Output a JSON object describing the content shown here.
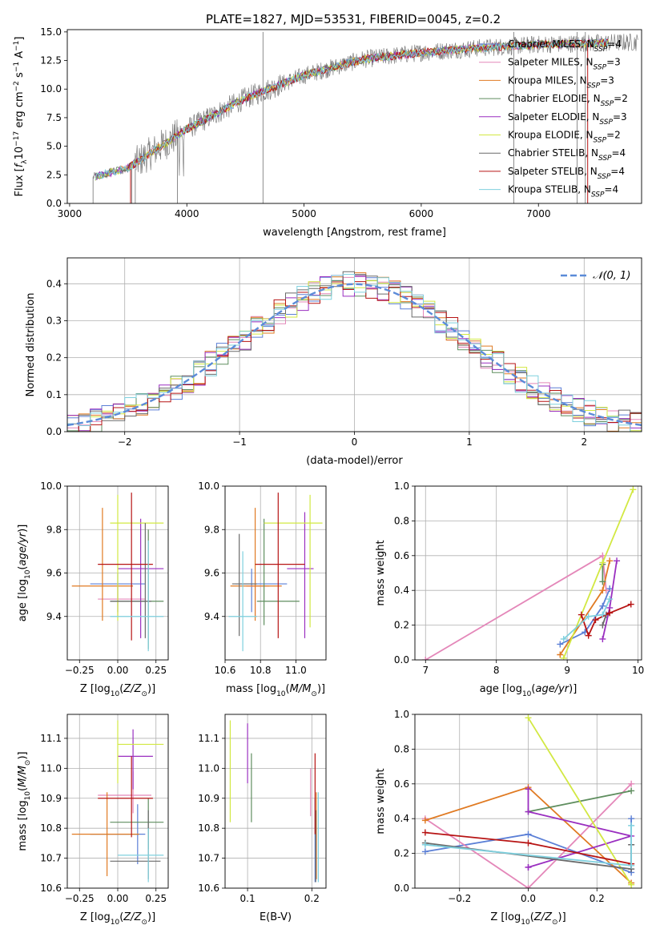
{
  "title": "PLATE=1827, MJD=53531, FIBERID=0045, z=0.2",
  "colors": {
    "Chabrier MILES": "#5b7fd6",
    "Salpeter MILES": "#e487b9",
    "Kroupa MILES": "#e07a22",
    "Chabrier ELODIE": "#5f8e5f",
    "Salpeter ELODIE": "#9a2fc0",
    "Kroupa ELODIE": "#d2e842",
    "Chabrier STELIB": "#6a6a6a",
    "Salpeter STELIB": "#b71414",
    "Kroupa STELIB": "#7fd0de",
    "spectrum": "#808080",
    "gaussian": "#5b8bd8",
    "grid": "#b0b0b0"
  },
  "chart_data": [
    {
      "id": "spectrum",
      "type": "line",
      "title": "PLATE=1827, MJD=53531, FIBERID=0045, z=0.2",
      "xlabel": "wavelength [Angstrom, rest frame]",
      "ylabel": "Flux [f_λ 10^-17 erg cm^-2 s^-1 A^-1]",
      "xlim": [
        2980,
        7880
      ],
      "ylim": [
        0,
        15.2
      ],
      "xticks": [
        "3000",
        "4000",
        "5000",
        "6000",
        "7000"
      ],
      "yticks": [
        "0.0",
        "2.5",
        "5.0",
        "7.5",
        "10.0",
        "12.5",
        "15.0"
      ],
      "grid": false,
      "legend_position": "top-right",
      "continuum": {
        "x": [
          3200,
          3500,
          4000,
          4500,
          5000,
          5500,
          6000,
          6500,
          7000,
          7400,
          7800
        ],
        "y": [
          2.3,
          3.1,
          6.5,
          9.2,
          11.2,
          12.6,
          13.2,
          13.6,
          13.9,
          14.0,
          14.1
        ]
      },
      "series": [
        {
          "name": "Chabrier MILES",
          "nssp": "4"
        },
        {
          "name": "Salpeter MILES",
          "nssp": "3"
        },
        {
          "name": "Kroupa MILES",
          "nssp": "3"
        },
        {
          "name": "Chabrier ELODIE",
          "nssp": "2"
        },
        {
          "name": "Salpeter ELODIE",
          "nssp": "3"
        },
        {
          "name": "Kroupa ELODIE",
          "nssp": "2"
        },
        {
          "name": "Chabrier STELIB",
          "nssp": "4"
        },
        {
          "name": "Salpeter STELIB",
          "nssp": "4"
        },
        {
          "name": "Kroupa STELIB",
          "nssp": "4"
        }
      ]
    },
    {
      "id": "residuals",
      "type": "line",
      "xlabel": "(data-model)/error",
      "ylabel": "Normed distribution",
      "xlim": [
        -2.5,
        2.5
      ],
      "ylim": [
        0,
        0.47
      ],
      "xticks": [
        "−2",
        "−1",
        "0",
        "1",
        "2"
      ],
      "yticks": [
        "0.0",
        "0.1",
        "0.2",
        "0.3",
        "0.4"
      ],
      "grid": true,
      "legend_position": "top-right",
      "legend_label": "𝒩(0, 1)",
      "gaussian": {
        "mean": 0,
        "sigma": 1
      }
    },
    {
      "id": "z-age",
      "type": "scatter",
      "xlabel": "Z [log10(Z/Z⊙)]",
      "ylabel": "age  [log10(age/yr)]",
      "xlim": [
        -0.33,
        0.33
      ],
      "ylim": [
        9.2,
        10.0
      ],
      "xticks": [
        "−0.25",
        "0.00",
        "0.25"
      ],
      "yticks": [
        "9.4",
        "9.6",
        "9.8",
        "10.0"
      ],
      "grid": true,
      "points": [
        {
          "model": "Chabrier MILES",
          "x": 0.0,
          "y": 9.55,
          "xlo": -0.18,
          "xhi": 0.18,
          "ylo": 9.42,
          "yhi": 9.6
        },
        {
          "model": "Salpeter MILES",
          "x": 0.0,
          "y": 9.48,
          "xlo": -0.13,
          "xhi": 0.18,
          "ylo": 9.4,
          "yhi": 9.55
        },
        {
          "model": "Kroupa MILES",
          "x": -0.1,
          "y": 9.54,
          "xlo": -0.3,
          "xhi": 0.1,
          "ylo": 9.38,
          "yhi": 9.9
        },
        {
          "model": "Chabrier ELODIE",
          "x": 0.2,
          "y": 9.47,
          "xlo": -0.05,
          "xhi": 0.3,
          "ylo": 9.25,
          "yhi": 9.8
        },
        {
          "model": "Salpeter ELODIE",
          "x": 0.15,
          "y": 9.62,
          "xlo": 0.0,
          "xhi": 0.3,
          "ylo": 9.3,
          "yhi": 9.85
        },
        {
          "model": "Kroupa ELODIE",
          "x": 0.0,
          "y": 9.83,
          "xlo": -0.05,
          "xhi": 0.3,
          "ylo": 9.38,
          "yhi": 9.96
        },
        {
          "model": "Chabrier STELIB",
          "x": 0.18,
          "y": 9.47,
          "xlo": -0.05,
          "xhi": 0.22,
          "ylo": 9.3,
          "yhi": 9.83
        },
        {
          "model": "Salpeter STELIB",
          "x": 0.09,
          "y": 9.64,
          "xlo": -0.13,
          "xhi": 0.23,
          "ylo": 9.29,
          "yhi": 9.97
        },
        {
          "model": "Kroupa STELIB",
          "x": 0.2,
          "y": 9.4,
          "xlo": -0.05,
          "xhi": 0.3,
          "ylo": 9.24,
          "yhi": 9.75
        }
      ]
    },
    {
      "id": "mass-age",
      "type": "scatter",
      "xlabel": "mass [log10(M/M⊙)]",
      "ylabel": "",
      "xlim": [
        10.6,
        11.17
      ],
      "ylim": [
        9.2,
        10.0
      ],
      "xticks": [
        "10.6",
        "10.8",
        "11.0"
      ],
      "yticks": [
        "9.4",
        "9.6",
        "9.8",
        "10.0"
      ],
      "grid": true,
      "points": [
        {
          "model": "Chabrier MILES",
          "x": 10.75,
          "y": 9.55,
          "xlo": 10.66,
          "xhi": 10.95,
          "ylo": 9.42,
          "yhi": 9.62
        },
        {
          "model": "Salpeter MILES",
          "x": 10.77,
          "y": 9.54,
          "xlo": 10.72,
          "xhi": 10.85,
          "ylo": 9.4,
          "yhi": 9.6
        },
        {
          "model": "Kroupa MILES",
          "x": 10.77,
          "y": 9.54,
          "xlo": 10.63,
          "xhi": 10.92,
          "ylo": 9.38,
          "yhi": 9.9
        },
        {
          "model": "Chabrier ELODIE",
          "x": 10.82,
          "y": 9.47,
          "xlo": 10.78,
          "xhi": 11.02,
          "ylo": 9.36,
          "yhi": 9.85
        },
        {
          "model": "Salpeter ELODIE",
          "x": 11.05,
          "y": 9.62,
          "xlo": 10.95,
          "xhi": 11.1,
          "ylo": 9.3,
          "yhi": 9.88
        },
        {
          "model": "Kroupa ELODIE",
          "x": 11.08,
          "y": 9.83,
          "xlo": 10.82,
          "xhi": 11.15,
          "ylo": 9.35,
          "yhi": 9.96
        },
        {
          "model": "Chabrier STELIB",
          "x": 10.68,
          "y": 9.55,
          "xlo": 10.64,
          "xhi": 10.78,
          "ylo": 9.31,
          "yhi": 9.78
        },
        {
          "model": "Salpeter STELIB",
          "x": 10.9,
          "y": 9.64,
          "xlo": 10.77,
          "xhi": 11.05,
          "ylo": 9.3,
          "yhi": 9.97
        },
        {
          "model": "Kroupa STELIB",
          "x": 10.7,
          "y": 9.4,
          "xlo": 10.62,
          "xhi": 10.78,
          "ylo": 9.24,
          "yhi": 9.7
        }
      ]
    },
    {
      "id": "age-weight",
      "type": "line",
      "xlabel": "age  [log10(age/yr)]",
      "ylabel": "mass weight",
      "xlim": [
        6.85,
        10.05
      ],
      "ylim": [
        0,
        1.0
      ],
      "xticks": [
        "7",
        "8",
        "9",
        "10"
      ],
      "yticks": [
        "0.0",
        "0.2",
        "0.4",
        "0.6",
        "0.8",
        "1.0"
      ],
      "grid": true,
      "series": [
        {
          "name": "Chabrier MILES",
          "x": [
            8.9,
            9.25,
            9.5,
            9.6
          ],
          "y": [
            0.09,
            0.16,
            0.31,
            0.41
          ]
        },
        {
          "name": "Salpeter MILES",
          "x": [
            7.0,
            9.5,
            9.55
          ],
          "y": [
            0.0,
            0.6,
            0.4
          ]
        },
        {
          "name": "Kroupa MILES",
          "x": [
            8.9,
            9.5,
            9.6
          ],
          "y": [
            0.03,
            0.4,
            0.57
          ]
        },
        {
          "name": "Chabrier ELODIE",
          "x": [
            9.5,
            9.5
          ],
          "y": [
            0.55,
            0.45
          ]
        },
        {
          "name": "Salpeter ELODIE",
          "x": [
            9.5,
            9.6,
            9.7
          ],
          "y": [
            0.12,
            0.3,
            0.57
          ]
        },
        {
          "name": "Kroupa ELODIE",
          "x": [
            8.95,
            9.5,
            9.93
          ],
          "y": [
            0.01,
            0.56,
            0.98
          ]
        },
        {
          "name": "Chabrier STELIB",
          "x": [
            9.5,
            9.55
          ],
          "y": [
            0.2,
            0.26
          ]
        },
        {
          "name": "Salpeter STELIB",
          "x": [
            9.2,
            9.3,
            9.4,
            9.6,
            9.9
          ],
          "y": [
            0.26,
            0.14,
            0.23,
            0.27,
            0.32
          ]
        },
        {
          "name": "Kroupa STELIB",
          "x": [
            8.95,
            9.3,
            9.5,
            9.6
          ],
          "y": [
            0.12,
            0.25,
            0.26,
            0.35
          ]
        }
      ]
    },
    {
      "id": "z-mass",
      "type": "scatter",
      "xlabel": "Z [log10(Z/Z⊙)]",
      "ylabel": "mass [log10(M/M⊙)]",
      "xlim": [
        -0.33,
        0.33
      ],
      "ylim": [
        10.6,
        11.18
      ],
      "xticks": [
        "−0.25",
        "0.00",
        "0.25"
      ],
      "yticks": [
        "10.6",
        "10.7",
        "10.8",
        "10.9",
        "11.0",
        "11.1"
      ],
      "grid": true,
      "points": [
        {
          "model": "Chabrier MILES",
          "x": 0.13,
          "y": 10.78,
          "xlo": -0.18,
          "xhi": 0.18,
          "ylo": 10.68,
          "yhi": 10.88
        },
        {
          "model": "Salpeter MILES",
          "x": 0.1,
          "y": 10.91,
          "xlo": -0.13,
          "xhi": 0.22,
          "ylo": 10.85,
          "yhi": 10.99
        },
        {
          "model": "Kroupa MILES",
          "x": -0.07,
          "y": 10.78,
          "xlo": -0.3,
          "xhi": 0.14,
          "ylo": 10.64,
          "yhi": 10.92
        },
        {
          "model": "Chabrier ELODIE",
          "x": 0.2,
          "y": 10.82,
          "xlo": -0.05,
          "xhi": 0.3,
          "ylo": 10.73,
          "yhi": 10.9
        },
        {
          "model": "Salpeter ELODIE",
          "x": 0.1,
          "y": 11.04,
          "xlo": 0.0,
          "xhi": 0.23,
          "ylo": 10.93,
          "yhi": 11.13
        },
        {
          "model": "Kroupa ELODIE",
          "x": 0.0,
          "y": 11.08,
          "xlo": 0.0,
          "xhi": 0.3,
          "ylo": 10.95,
          "yhi": 11.16
        },
        {
          "model": "Chabrier STELIB",
          "x": 0.2,
          "y": 10.69,
          "xlo": -0.05,
          "xhi": 0.28,
          "ylo": 10.63,
          "yhi": 10.86
        },
        {
          "model": "Salpeter STELIB",
          "x": 0.09,
          "y": 10.9,
          "xlo": -0.13,
          "xhi": 0.23,
          "ylo": 10.77,
          "yhi": 11.04
        },
        {
          "model": "Kroupa STELIB",
          "x": 0.2,
          "y": 10.71,
          "xlo": 0.0,
          "xhi": 0.3,
          "ylo": 10.62,
          "yhi": 10.8
        }
      ]
    },
    {
      "id": "ebv-mass",
      "type": "scatter",
      "xlabel": "E(B-V)",
      "ylabel": "",
      "xlim": [
        0.065,
        0.222
      ],
      "ylim": [
        10.6,
        11.18
      ],
      "xticks": [
        "0.1",
        "0.2"
      ],
      "yticks": [
        "10.6",
        "10.7",
        "10.8",
        "10.9",
        "11.0",
        "11.1"
      ],
      "grid": true,
      "points": [
        {
          "model": "Chabrier MILES",
          "x": 0.205,
          "y": 10.78,
          "ylo": 10.62,
          "yhi": 10.9
        },
        {
          "model": "Salpeter MILES",
          "x": 0.198,
          "y": 10.91,
          "ylo": 10.84,
          "yhi": 11.0
        },
        {
          "model": "Kroupa MILES",
          "x": 0.207,
          "y": 10.78,
          "ylo": 10.63,
          "yhi": 10.92
        },
        {
          "model": "Chabrier ELODIE",
          "x": 0.106,
          "y": 10.82,
          "ylo": 10.82,
          "yhi": 11.05
        },
        {
          "model": "Salpeter ELODIE",
          "x": 0.1,
          "y": 11.04,
          "ylo": 10.95,
          "yhi": 11.15
        },
        {
          "model": "Kroupa ELODIE",
          "x": 0.073,
          "y": 11.08,
          "ylo": 10.82,
          "yhi": 11.16
        },
        {
          "model": "Chabrier STELIB",
          "x": 0.206,
          "y": 10.69,
          "ylo": 10.62,
          "yhi": 10.86
        },
        {
          "model": "Salpeter STELIB",
          "x": 0.205,
          "y": 10.9,
          "ylo": 10.78,
          "yhi": 11.05
        },
        {
          "model": "Kroupa STELIB",
          "x": 0.21,
          "y": 10.71,
          "ylo": 10.62,
          "yhi": 10.92
        }
      ]
    },
    {
      "id": "z-weight",
      "type": "line",
      "xlabel": "Z [log10(Z/Z⊙)]",
      "ylabel": "mass weight",
      "xlim": [
        -0.33,
        0.33
      ],
      "ylim": [
        0,
        1.0
      ],
      "xticks": [
        "−0.2",
        "0.0",
        "0.2"
      ],
      "yticks": [
        "0.0",
        "0.2",
        "0.4",
        "0.6",
        "0.8",
        "1.0"
      ],
      "grid": true,
      "series": [
        {
          "name": "Chabrier MILES",
          "x": [
            -0.3,
            0.0,
            0.3,
            0.3
          ],
          "y": [
            0.21,
            0.31,
            0.09,
            0.4
          ]
        },
        {
          "name": "Salpeter MILES",
          "x": [
            -0.3,
            0.0,
            0.3
          ],
          "y": [
            0.4,
            0.0,
            0.6
          ]
        },
        {
          "name": "Kroupa MILES",
          "x": [
            -0.3,
            0.0,
            0.3
          ],
          "y": [
            0.39,
            0.58,
            0.03
          ]
        },
        {
          "name": "Chabrier ELODIE",
          "x": [
            0.0,
            0.3
          ],
          "y": [
            0.44,
            0.56
          ]
        },
        {
          "name": "Salpeter ELODIE",
          "x": [
            0.0,
            0.0,
            0.3,
            0.0,
            0.0
          ],
          "y": [
            0.57,
            0.44,
            0.3,
            0.12,
            0.12
          ]
        },
        {
          "name": "Kroupa ELODIE",
          "x": [
            0.0,
            0.3
          ],
          "y": [
            0.98,
            0.02
          ]
        },
        {
          "name": "Chabrier STELIB",
          "x": [
            -0.3,
            0.3,
            0.3
          ],
          "y": [
            0.26,
            0.11,
            0.25
          ]
        },
        {
          "name": "Salpeter STELIB",
          "x": [
            -0.3,
            0.0,
            0.3
          ],
          "y": [
            0.32,
            0.26,
            0.14
          ]
        },
        {
          "name": "Kroupa STELIB",
          "x": [
            -0.3,
            0.3,
            0.3
          ],
          "y": [
            0.25,
            0.13,
            0.36
          ]
        }
      ]
    }
  ]
}
